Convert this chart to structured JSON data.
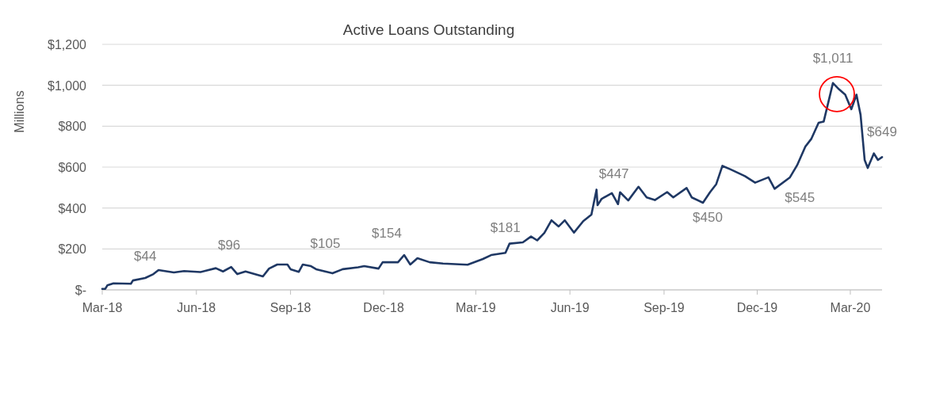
{
  "chart_data": {
    "type": "line",
    "title": "Active Loans Outstanding",
    "ylabel": "Millions",
    "x": [
      "2018-03-01",
      "2018-03-04",
      "2018-03-06",
      "2018-03-12",
      "2018-03-29",
      "2018-03-31",
      "2018-04-12",
      "2018-04-20",
      "2018-04-25",
      "2018-05-10",
      "2018-05-20",
      "2018-06-05",
      "2018-06-20",
      "2018-06-27",
      "2018-07-05",
      "2018-07-11",
      "2018-07-19",
      "2018-08-05",
      "2018-08-11",
      "2018-08-19",
      "2018-08-29",
      "2018-09-01",
      "2018-09-09",
      "2018-09-13",
      "2018-09-21",
      "2018-09-26",
      "2018-10-12",
      "2018-10-22",
      "2018-11-06",
      "2018-11-12",
      "2018-11-26",
      "2018-11-30",
      "2018-12-15",
      "2018-12-21",
      "2018-12-27",
      "2019-01-03",
      "2019-01-15",
      "2019-01-28",
      "2019-02-21",
      "2019-03-08",
      "2019-03-16",
      "2019-03-30",
      "2019-04-03",
      "2019-04-16",
      "2019-04-24",
      "2019-04-30",
      "2019-05-07",
      "2019-05-14",
      "2019-05-21",
      "2019-05-27",
      "2019-06-05",
      "2019-06-14",
      "2019-06-22",
      "2019-06-27",
      "2019-06-28",
      "2019-07-02",
      "2019-07-12",
      "2019-07-18",
      "2019-07-20",
      "2019-07-28",
      "2019-08-07",
      "2019-08-15",
      "2019-08-23",
      "2019-09-04",
      "2019-09-10",
      "2019-09-23",
      "2019-09-28",
      "2019-10-09",
      "2019-10-16",
      "2019-10-22",
      "2019-10-28",
      "2019-11-05",
      "2019-11-19",
      "2019-11-29",
      "2019-12-12",
      "2019-12-18",
      "2020-01-02",
      "2020-01-09",
      "2020-01-17",
      "2020-01-23",
      "2020-01-30",
      "2020-02-04",
      "2020-02-13",
      "2020-02-19",
      "2020-02-25",
      "2020-03-02",
      "2020-03-07",
      "2020-03-11",
      "2020-03-15",
      "2020-03-18",
      "2020-03-24",
      "2020-03-28",
      "2020-04-01"
    ],
    "series": [
      {
        "color": "#1f3864",
        "values": [
          5,
          5,
          22,
          32,
          30,
          46,
          58,
          77,
          97,
          85,
          92,
          87,
          106,
          90,
          112,
          77,
          90,
          66,
          104,
          124,
          124,
          101,
          88,
          124,
          116,
          101,
          81,
          101,
          110,
          116,
          104,
          135,
          135,
          170,
          124,
          155,
          135,
          129,
          123,
          151,
          170,
          181,
          226,
          232,
          261,
          242,
          278,
          340,
          310,
          340,
          280,
          336,
          368,
          490,
          414,
          445,
          473,
          419,
          477,
          437,
          504,
          452,
          439,
          478,
          452,
          498,
          452,
          426,
          478,
          517,
          606,
          589,
          556,
          524,
          550,
          494,
          550,
          609,
          700,
          739,
          817,
          823,
          1011,
          980,
          954,
          883,
          954,
          856,
          635,
          596,
          667,
          635,
          649
        ]
      }
    ],
    "xlim": [
      "2018-03-01",
      "2020-04-01"
    ],
    "xticks": [
      {
        "value": "2018-03-01",
        "label": "Mar-18"
      },
      {
        "value": "2018-06-01",
        "label": "Jun-18"
      },
      {
        "value": "2018-09-01",
        "label": "Sep-18"
      },
      {
        "value": "2018-12-01",
        "label": "Dec-18"
      },
      {
        "value": "2019-03-01",
        "label": "Mar-19"
      },
      {
        "value": "2019-06-01",
        "label": "Jun-19"
      },
      {
        "value": "2019-09-01",
        "label": "Sep-19"
      },
      {
        "value": "2019-12-01",
        "label": "Dec-19"
      },
      {
        "value": "2020-03-01",
        "label": "Mar-20"
      }
    ],
    "ylim": [
      0,
      1200
    ],
    "yticks": [
      {
        "value": 0,
        "label": "$-"
      },
      {
        "value": 200,
        "label": "$200"
      },
      {
        "value": 400,
        "label": "$400"
      },
      {
        "value": 600,
        "label": "$600"
      },
      {
        "value": 800,
        "label": "$800"
      },
      {
        "value": 1000,
        "label": "$1,000"
      },
      {
        "value": 1200,
        "label": "$1,200"
      }
    ],
    "grid": "y",
    "annotations": [
      {
        "text": "$44",
        "x": "2018-04-12",
        "y": 44
      },
      {
        "text": "$96",
        "x": "2018-07-03",
        "y": 96
      },
      {
        "text": "$105",
        "x": "2018-10-05",
        "y": 105
      },
      {
        "text": "$154",
        "x": "2018-12-04",
        "y": 154
      },
      {
        "text": "$181",
        "x": "2019-03-30",
        "y": 181
      },
      {
        "text": "$447",
        "x": "2019-07-14",
        "y": 447
      },
      {
        "text": "$450",
        "x": "2019-10-09",
        "y": 450
      },
      {
        "text": "$545",
        "x": "2020-01-07",
        "y": 545
      },
      {
        "text": "$1,011",
        "x": "2020-02-13",
        "y": 1011
      },
      {
        "text": "$649",
        "x": "2020-04-01",
        "y": 649
      }
    ]
  }
}
